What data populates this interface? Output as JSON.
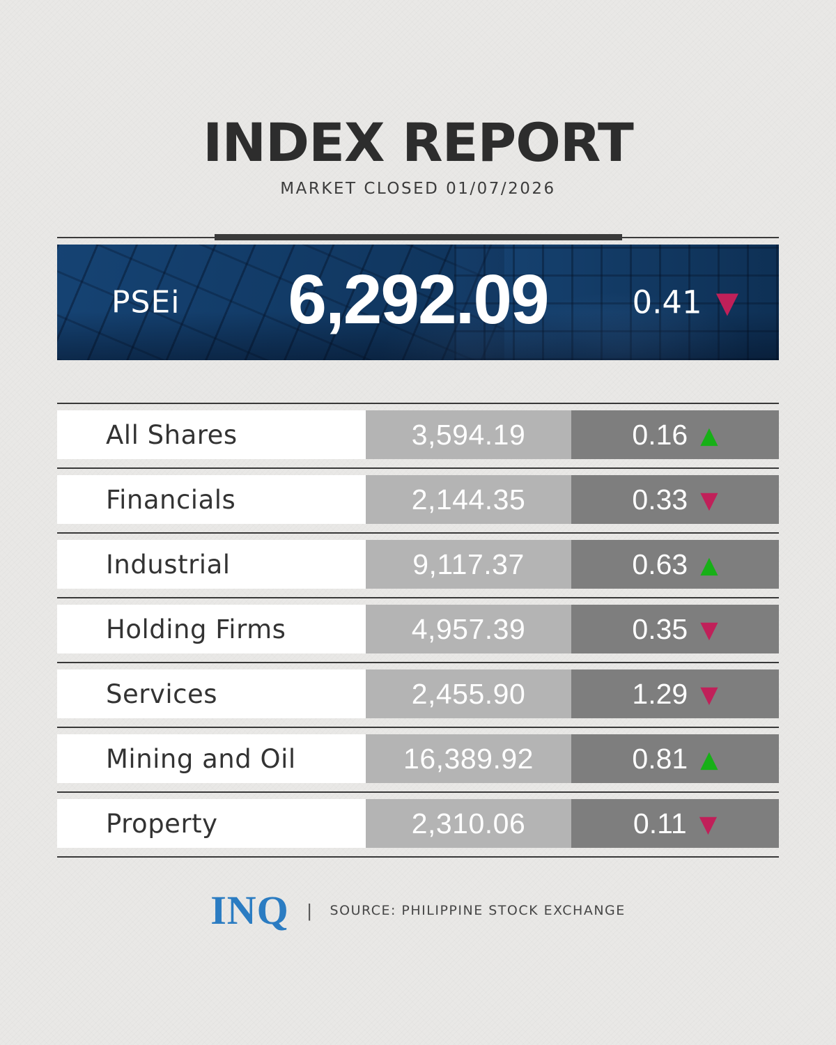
{
  "title": "INDEX REPORT",
  "subtitle": "MARKET CLOSED 01/07/2026",
  "psei": {
    "label": "PSEi",
    "value": "6,292.09",
    "change": "0.41",
    "direction": "down"
  },
  "indices": [
    {
      "label": "All Shares",
      "value": "3,594.19",
      "change": "0.16",
      "direction": "up"
    },
    {
      "label": "Financials",
      "value": "2,144.35",
      "change": "0.33",
      "direction": "down"
    },
    {
      "label": "Industrial",
      "value": "9,117.37",
      "change": "0.63",
      "direction": "up"
    },
    {
      "label": "Holding Firms",
      "value": "4,957.39",
      "change": "0.35",
      "direction": "down"
    },
    {
      "label": "Services",
      "value": "2,455.90",
      "change": "1.29",
      "direction": "down"
    },
    {
      "label": "Mining and Oil",
      "value": "16,389.92",
      "change": "0.81",
      "direction": "up"
    },
    {
      "label": "Property",
      "value": "2,310.06",
      "change": "0.11",
      "direction": "down"
    }
  ],
  "icons": {
    "up_triangle": "▲",
    "down_triangle": "▼"
  },
  "colors": {
    "up": "#17b017",
    "down": "#c02059",
    "banner_navy": "#133f6c",
    "accent_bar": "#3a3a3a",
    "value_cell_bg": "#b4b4b4",
    "change_cell_bg": "#7e7e7e",
    "logo_blue": "#2b7cc2"
  },
  "footer": {
    "logo": "INQ",
    "separator": "|",
    "source": "SOURCE: PHILIPPINE STOCK EXCHANGE"
  }
}
